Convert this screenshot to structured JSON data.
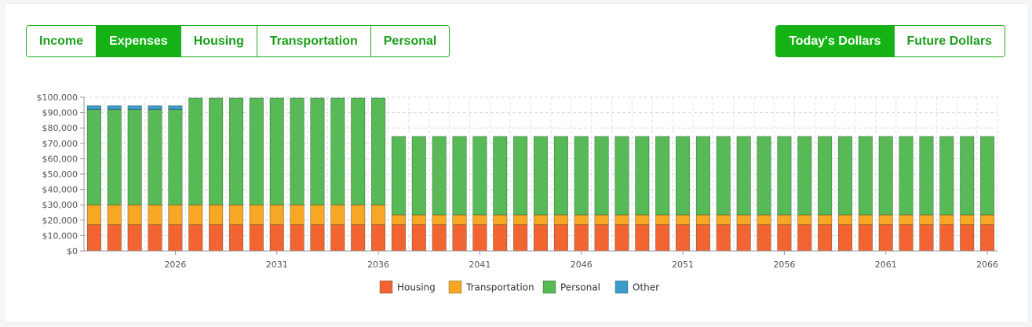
{
  "tabs": [
    {
      "label": "Income",
      "active": false
    },
    {
      "label": "Expenses",
      "active": true
    },
    {
      "label": "Housing",
      "active": false
    },
    {
      "label": "Transportation",
      "active": false
    },
    {
      "label": "Personal",
      "active": false
    }
  ],
  "dollar_toggle": [
    {
      "label": "Today's Dollars",
      "active": true
    },
    {
      "label": "Future Dollars",
      "active": false
    }
  ],
  "chart_data": {
    "type": "bar",
    "stacked": true,
    "x_start": 2022,
    "x_end": 2066,
    "x_ticks": [
      2026,
      2031,
      2036,
      2041,
      2046,
      2051,
      2056,
      2061,
      2066
    ],
    "ylim": [
      0,
      100000
    ],
    "y_ticks": [
      "$0",
      "$10,000",
      "$20,000",
      "$30,000",
      "$40,000",
      "$50,000",
      "$60,000",
      "$70,000",
      "$80,000",
      "$90,000",
      "$100,000"
    ],
    "grid": true,
    "legend_position": "bottom",
    "series": [
      {
        "name": "Housing",
        "color": "#f26532",
        "values": [
          17000,
          17000,
          17000,
          17000,
          17000,
          17000,
          17000,
          17000,
          17000,
          17000,
          17000,
          17000,
          17000,
          17000,
          17000,
          17000,
          17000,
          17000,
          17000,
          17000,
          17000,
          17000,
          17000,
          17000,
          17000,
          17000,
          17000,
          17000,
          17000,
          17000,
          17000,
          17000,
          17000,
          17000,
          17000,
          17000,
          17000,
          17000,
          17000,
          17000,
          17000,
          17000,
          17000,
          17000,
          17000
        ]
      },
      {
        "name": "Transportation",
        "color": "#f7a723",
        "values": [
          13000,
          13000,
          13000,
          13000,
          13000,
          13000,
          13000,
          13000,
          13000,
          13000,
          13000,
          13000,
          13000,
          13000,
          13000,
          6500,
          6500,
          6500,
          6500,
          6500,
          6500,
          6500,
          6500,
          6500,
          6500,
          6500,
          6500,
          6500,
          6500,
          6500,
          6500,
          6500,
          6500,
          6500,
          6500,
          6500,
          6500,
          6500,
          6500,
          6500,
          6500,
          6500,
          6500,
          6500,
          6500
        ]
      },
      {
        "name": "Personal",
        "color": "#58b957",
        "values": [
          62000,
          62000,
          62000,
          62000,
          62000,
          69500,
          69500,
          69500,
          69500,
          69500,
          69500,
          69500,
          69500,
          69500,
          69500,
          51000,
          51000,
          51000,
          51000,
          51000,
          51000,
          51000,
          51000,
          51000,
          51000,
          51000,
          51000,
          51000,
          51000,
          51000,
          51000,
          51000,
          51000,
          51000,
          51000,
          51000,
          51000,
          51000,
          51000,
          51000,
          51000,
          51000,
          51000,
          51000,
          51000
        ]
      },
      {
        "name": "Other",
        "color": "#3b9cc9",
        "values": [
          2500,
          2500,
          2500,
          2500,
          2500,
          0,
          0,
          0,
          0,
          0,
          0,
          0,
          0,
          0,
          0,
          0,
          0,
          0,
          0,
          0,
          0,
          0,
          0,
          0,
          0,
          0,
          0,
          0,
          0,
          0,
          0,
          0,
          0,
          0,
          0,
          0,
          0,
          0,
          0,
          0,
          0,
          0,
          0,
          0,
          0
        ]
      }
    ]
  }
}
